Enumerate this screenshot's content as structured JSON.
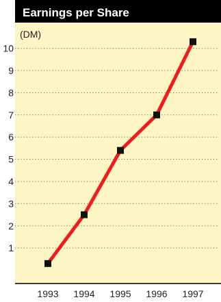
{
  "chart_data": {
    "type": "line",
    "title": "Earnings per Share",
    "unit_label": "(DM)",
    "categories": [
      "1993",
      "1994",
      "1995",
      "1996",
      "1997"
    ],
    "series": [
      {
        "values": [
          0.3,
          2.5,
          5.4,
          7.0,
          10.3
        ]
      }
    ],
    "y_ticks": [
      1,
      2,
      3,
      4,
      5,
      6,
      7,
      8,
      9,
      10
    ],
    "ylim": [
      -0.6,
      11.5
    ],
    "grid": true,
    "colors": {
      "header_bg": "#000000",
      "header_text": "#ffffff",
      "plot_bg": "#fdf6c4",
      "line": "#ee1c1c",
      "marker": "#111111",
      "grid": "#666666",
      "text": "#222222",
      "axis": "#000000"
    }
  }
}
